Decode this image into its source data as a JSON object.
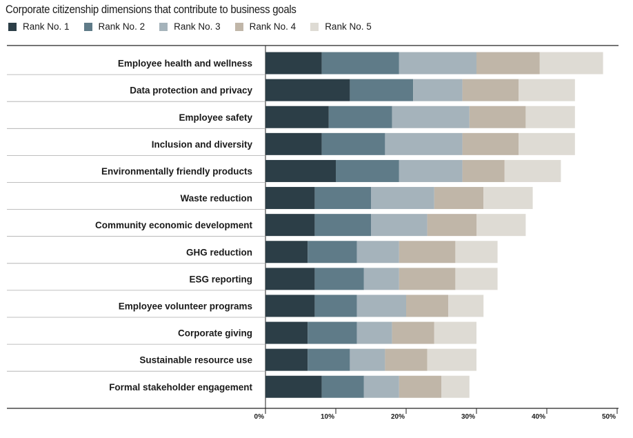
{
  "chart_data": {
    "type": "bar",
    "orientation": "horizontal",
    "stacked": true,
    "title": "Corporate citizenship dimensions that contribute to business goals",
    "xlim": [
      0,
      50
    ],
    "x_ticks": [
      "0%",
      "10%",
      "20%",
      "30%",
      "40%",
      "50%"
    ],
    "categories": [
      "Employee health and wellness",
      "Data protection and privacy",
      "Employee safety",
      "Inclusion and diversity",
      "Environmentally friendly products",
      "Waste reduction",
      "Community economic development",
      "GHG reduction",
      "ESG reporting",
      "Employee volunteer programs",
      "Corporate giving",
      "Sustainable resource use",
      "Formal stakeholder engagement"
    ],
    "series": [
      {
        "name": "Rank No. 1",
        "color": "#2c3e47",
        "values": [
          8,
          12,
          9,
          8,
          10,
          7,
          7,
          6,
          7,
          7,
          6,
          6,
          8
        ]
      },
      {
        "name": "Rank No. 2",
        "color": "#5f7b88",
        "values": [
          11,
          9,
          9,
          9,
          9,
          8,
          8,
          7,
          7,
          6,
          7,
          6,
          6
        ]
      },
      {
        "name": "Rank No. 3",
        "color": "#a5b3bb",
        "values": [
          11,
          7,
          11,
          11,
          9,
          9,
          8,
          6,
          5,
          7,
          5,
          5,
          5
        ]
      },
      {
        "name": "Rank No. 4",
        "color": "#c0b6a8",
        "values": [
          9,
          8,
          8,
          8,
          6,
          7,
          7,
          8,
          8,
          6,
          6,
          6,
          6
        ]
      },
      {
        "name": "Rank No. 5",
        "color": "#dedbd4",
        "values": [
          9,
          8,
          7,
          8,
          8,
          7,
          7,
          6,
          6,
          5,
          6,
          7,
          4
        ]
      }
    ],
    "legend_position": "top-left",
    "grid": false
  }
}
